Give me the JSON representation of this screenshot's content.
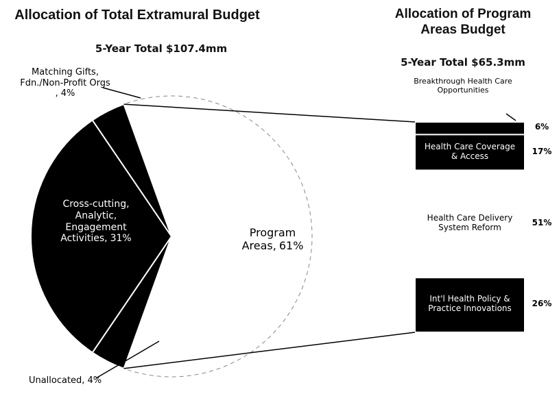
{
  "chart_data": [
    {
      "type": "pie",
      "title": "Allocation of Total Extramural Budget",
      "subtitle": "5-Year Total $107.4mm",
      "categories": [
        "Program Areas,",
        "Unallocated,",
        "Cross-cutting, Analytic, Engagement Activities,",
        "Matching Gifts, Fdn./Non-Profit Orgs ,"
      ],
      "values": [
        61,
        4,
        31,
        4
      ],
      "value_labels": [
        "61%",
        "4%",
        "31%",
        "4%"
      ],
      "colors": [
        "#ffffff",
        "#000000",
        "#000000",
        "#000000"
      ]
    },
    {
      "type": "stacked_bar",
      "title": "Allocation of Program Areas Budget",
      "subtitle": "5-Year Total $65.3mm",
      "categories": [
        "Breakthrough Health Care Opportunities",
        "Health Care Coverage & Access",
        "Health Care Delivery System Reform",
        "Int'l Health Policy & Practice Innovations"
      ],
      "values": [
        6,
        17,
        51,
        26
      ],
      "value_labels": [
        "6%",
        "17%",
        "51%",
        "26%"
      ],
      "colors": [
        "#000000",
        "#000000",
        "#ffffff",
        "#000000"
      ],
      "ylim": [
        0,
        100
      ]
    }
  ]
}
